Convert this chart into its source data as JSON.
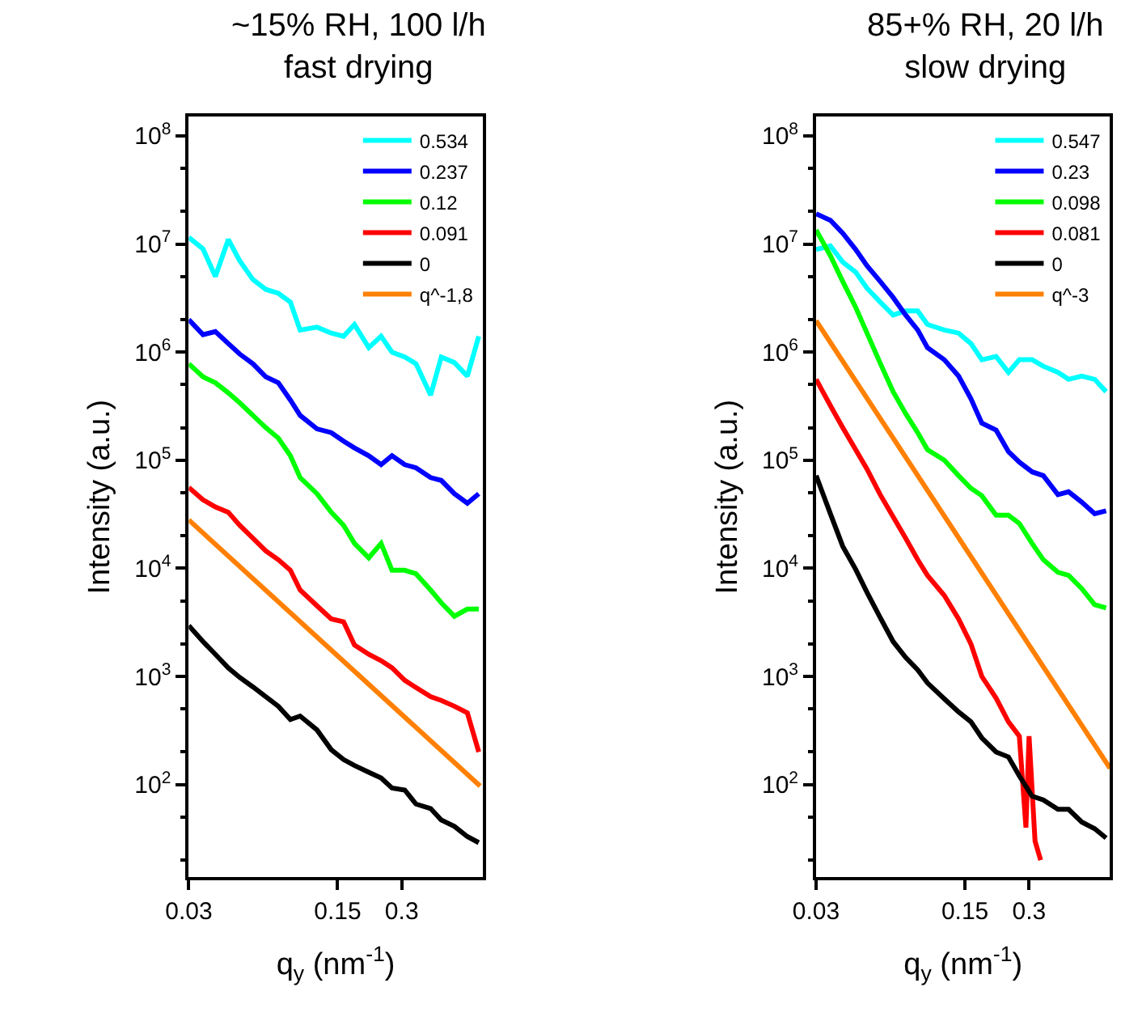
{
  "chart_data": [
    {
      "type": "line",
      "title": "~15% RH, 100 l/h\nfast drying",
      "xlabel": "q$_{y}$ (nm$^{-1}$)",
      "ylabel": "Intensity (a.u.)",
      "log": "xy",
      "legend": "top right",
      "marker": "none",
      "line_style": "solid",
      "xlim": [
        0.03,
        0.72
      ],
      "xticks": [
        0.03,
        0.15,
        0.3
      ],
      "ylim": [
        14,
        150000000.0
      ],
      "yticks": [
        {
          "value": 100,
          "label": "10$^{2}$"
        },
        {
          "value": 1000,
          "label": "10$^{3}$"
        },
        {
          "value": 10000,
          "label": "10$^{4}$"
        },
        {
          "value": 100000,
          "label": "10$^{5}$"
        },
        {
          "value": 1000000,
          "label": "10$^{6}$"
        },
        {
          "value": 10000000,
          "label": "10$^{7}$"
        },
        {
          "value": 100000000,
          "label": "10$^{8}$"
        }
      ],
      "x": [
        0.03,
        0.035,
        0.04,
        0.046,
        0.052,
        0.06,
        0.069,
        0.079,
        0.09,
        0.1,
        0.12,
        0.14,
        0.16,
        0.18,
        0.21,
        0.24,
        0.27,
        0.31,
        0.35,
        0.41,
        0.46,
        0.53,
        0.61,
        0.69
      ],
      "series": [
        {
          "name": "0.534",
          "color": "#00ffff",
          "values": [
            11500000.0,
            9000000.0,
            5000000.0,
            11000000.0,
            7000000.0,
            4700000.0,
            3800000.0,
            3500000.0,
            2900000.0,
            1600000.0,
            1700000.0,
            1500000.0,
            1400000.0,
            1800000.0,
            1100000.0,
            1400000.0,
            1000000.0,
            900000.0,
            780000.0,
            400000.0,
            900000.0,
            800000.0,
            600000.0,
            1400000.0
          ]
        },
        {
          "name": "0.237",
          "color": "#0000ff",
          "values": [
            2000000.0,
            1450000.0,
            1550000.0,
            1200000.0,
            960000.0,
            780000.0,
            590000.0,
            520000.0,
            360000.0,
            260000.0,
            195000.0,
            180000.0,
            150000.0,
            130000.0,
            110000.0,
            91000.0,
            110000.0,
            91000.0,
            85000.0,
            69000.0,
            65000.0,
            49000.0,
            40000.0,
            49000.0
          ]
        },
        {
          "name": "0.12",
          "color": "#00ff00",
          "values": [
            780000.0,
            590000.0,
            520000.0,
            420000.0,
            340000.0,
            260000.0,
            200000.0,
            160000.0,
            110000.0,
            69000.0,
            49000.0,
            33000.0,
            25000.0,
            17000.0,
            12500.0,
            17000.0,
            9600.0,
            9600.0,
            8900.0,
            6300.0,
            4800.0,
            3600.0,
            4200.0,
            4200.0
          ]
        },
        {
          "name": "0.091",
          "color": "#ff0000",
          "values": [
            56000.0,
            43000.0,
            37000.0,
            33000.0,
            25000.0,
            19000.0,
            14500.0,
            12000.0,
            9600.0,
            6300.0,
            4500.0,
            3400.0,
            3200.0,
            1950.0,
            1600.0,
            1400.0,
            1200.0,
            920.0,
            790.0,
            650.0,
            600.0,
            530.0,
            460.0,
            200.0
          ]
        },
        {
          "name": "0",
          "color": "#000000",
          "values": [
            2950.0,
            2100.0,
            1600.0,
            1200.0,
            980.0,
            800.0,
            650.0,
            530.0,
            400.0,
            430.0,
            320.0,
            210.0,
            170.0,
            150.0,
            130.0,
            115.0,
            93.0,
            89.0,
            66.0,
            60.0,
            47.0,
            41.0,
            33.0,
            29.0
          ]
        },
        {
          "name": "q^-1,8",
          "color": "#ff8000",
          "x": [
            0.03,
            0.7
          ],
          "values": [
            28000.0,
            97
          ]
        }
      ]
    },
    {
      "type": "line",
      "title": "85+% RH, 20 l/h\nslow drying",
      "xlabel": "q$_{y}$ (nm$^{-1}$)",
      "ylabel": "Intensity (a.u.)",
      "log": "xy",
      "legend": "top right",
      "marker": "none",
      "line_style": "solid",
      "xlim": [
        0.03,
        0.72
      ],
      "xticks": [
        0.03,
        0.15,
        0.3
      ],
      "ylim": [
        14,
        150000000.0
      ],
      "yticks": [
        {
          "value": 100,
          "label": "10$^{2}$"
        },
        {
          "value": 1000,
          "label": "10$^{3}$"
        },
        {
          "value": 10000,
          "label": "10$^{4}$"
        },
        {
          "value": 100000,
          "label": "10$^{5}$"
        },
        {
          "value": 1000000,
          "label": "10$^{6}$"
        },
        {
          "value": 10000000,
          "label": "10$^{7}$"
        },
        {
          "value": 100000000,
          "label": "10$^{8}$"
        }
      ],
      "x": [
        0.03,
        0.035,
        0.04,
        0.046,
        0.052,
        0.06,
        0.069,
        0.079,
        0.09,
        0.1,
        0.12,
        0.14,
        0.16,
        0.18,
        0.21,
        0.24,
        0.27,
        0.31,
        0.35,
        0.41,
        0.46,
        0.53,
        0.61,
        0.69
      ],
      "series": [
        {
          "name": "0.547",
          "color": "#00ffff",
          "values": [
            8900000.0,
            9600000.0,
            6800000.0,
            5500000.0,
            3900000.0,
            2900000.0,
            2200000.0,
            2400000.0,
            2400000.0,
            1800000.0,
            1600000.0,
            1500000.0,
            1200000.0,
            850000.0,
            910000.0,
            650000.0,
            850000.0,
            850000.0,
            740000.0,
            650000.0,
            560000.0,
            600000.0,
            560000.0,
            430000.0
          ]
        },
        {
          "name": "0.23",
          "color": "#0000ff",
          "values": [
            19000000.0,
            16600000.0,
            12600000.0,
            8900000.0,
            6300000.0,
            4500000.0,
            3200000.0,
            2200000.0,
            1600000.0,
            1100000.0,
            850000.0,
            600000.0,
            370000.0,
            220000.0,
            190000.0,
            120000.0,
            96000.0,
            78000.0,
            72000.0,
            48000.0,
            51000.0,
            41000.0,
            32000.0,
            34000.0
          ]
        },
        {
          "name": "0.098",
          "color": "#00ff00",
          "values": [
            13500000.0,
            7800000.0,
            4500000.0,
            2600000.0,
            1500000.0,
            790000.0,
            430000.0,
            270000.0,
            180000.0,
            125000.0,
            100000.0,
            72000.0,
            55000.0,
            47000.0,
            31000.0,
            31000.0,
            26000.0,
            17000.0,
            12000.0,
            9200.0,
            8600.0,
            6500.0,
            4600.0,
            4300.0
          ]
        },
        {
          "name": "0.081",
          "color": "#ff0000",
          "x": [
            0.03,
            0.035,
            0.04,
            0.046,
            0.052,
            0.06,
            0.069,
            0.079,
            0.09,
            0.1,
            0.12,
            0.14,
            0.16,
            0.18,
            0.21,
            0.24,
            0.27,
            0.29,
            0.3,
            0.32,
            0.34
          ],
          "values": [
            560000.0,
            320000.0,
            200000.0,
            125000.0,
            83000.0,
            48000.0,
            30000.0,
            19000.0,
            12000.0,
            8600.0,
            5600.0,
            3400.0,
            2000.0,
            1000.0,
            630.0,
            380.0,
            280.0,
            40,
            280,
            30,
            20
          ]
        },
        {
          "name": "0",
          "color": "#000000",
          "values": [
            72000.0,
            32000.0,
            16000.0,
            9800.0,
            6000.0,
            3500.0,
            2100.0,
            1500.0,
            1150.0,
            870.0,
            620.0,
            470.0,
            380.0,
            270.0,
            200.0,
            180.0,
            120.0,
            78.0,
            72.0,
            59.0,
            59.0,
            45.0,
            39.0,
            32.0
          ]
        },
        {
          "name": "q^-3",
          "color": "#ff8000",
          "x": [
            0.03,
            0.72
          ],
          "values": [
            1950000.0,
            141
          ]
        }
      ]
    }
  ]
}
